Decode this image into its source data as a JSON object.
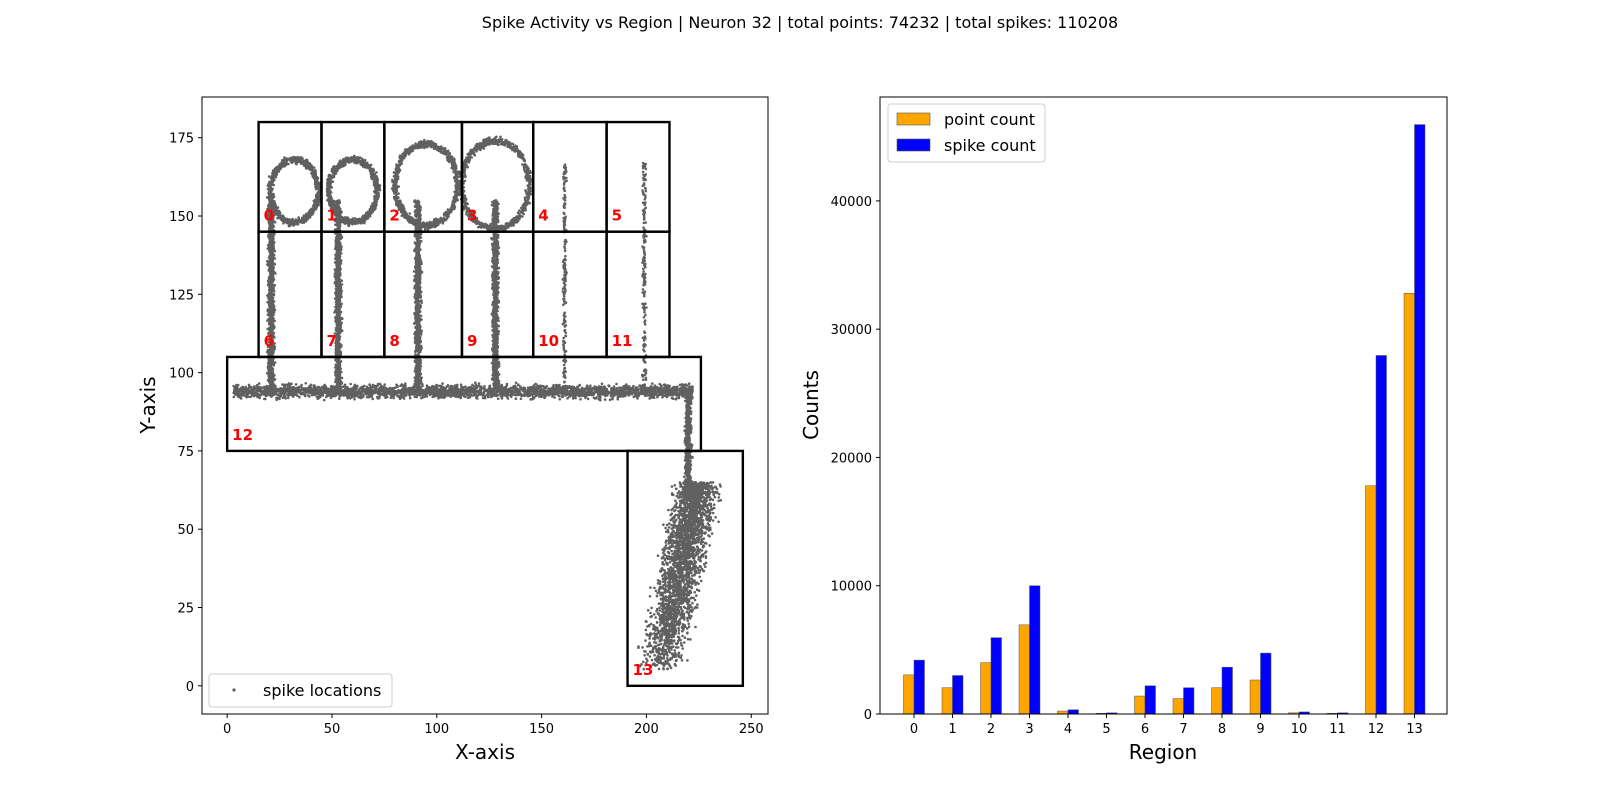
{
  "figure": {
    "title": "Spike Activity vs Region | Neuron 32 | total points: 74232 | total spikes: 110208"
  },
  "chart_data": [
    {
      "type": "scatter",
      "xlabel": "X-axis",
      "ylabel": "Y-axis",
      "xlim": [
        -12,
        258
      ],
      "ylim": [
        -9,
        188
      ],
      "xticks": [
        0,
        50,
        100,
        150,
        200,
        250
      ],
      "yticks": [
        0,
        25,
        50,
        75,
        100,
        125,
        150,
        175
      ],
      "grid": false,
      "legend": {
        "location": "lower-left",
        "entries": [
          "spike locations"
        ]
      },
      "point_color": "#606060",
      "region_label_color": "#ff0000",
      "regions": [
        {
          "id": "0",
          "x": [
            15,
            45
          ],
          "y": [
            145,
            180
          ]
        },
        {
          "id": "1",
          "x": [
            45,
            75
          ],
          "y": [
            145,
            180
          ]
        },
        {
          "id": "2",
          "x": [
            75,
            112
          ],
          "y": [
            145,
            180
          ]
        },
        {
          "id": "3",
          "x": [
            112,
            146
          ],
          "y": [
            145,
            180
          ]
        },
        {
          "id": "4",
          "x": [
            146,
            181
          ],
          "y": [
            145,
            180
          ]
        },
        {
          "id": "5",
          "x": [
            181,
            211
          ],
          "y": [
            145,
            180
          ]
        },
        {
          "id": "6",
          "x": [
            15,
            45
          ],
          "y": [
            105,
            145
          ]
        },
        {
          "id": "7",
          "x": [
            45,
            75
          ],
          "y": [
            105,
            145
          ]
        },
        {
          "id": "8",
          "x": [
            75,
            112
          ],
          "y": [
            105,
            145
          ]
        },
        {
          "id": "9",
          "x": [
            112,
            146
          ],
          "y": [
            105,
            145
          ]
        },
        {
          "id": "10",
          "x": [
            146,
            181
          ],
          "y": [
            105,
            145
          ]
        },
        {
          "id": "11",
          "x": [
            181,
            211
          ],
          "y": [
            105,
            145
          ]
        },
        {
          "id": "12",
          "x": [
            0,
            226
          ],
          "y": [
            75,
            105
          ]
        },
        {
          "id": "13",
          "x": [
            191,
            246
          ],
          "y": [
            0,
            75
          ]
        }
      ],
      "trajectory": {
        "stems_x": [
          21,
          53,
          91,
          128,
          161,
          199
        ],
        "loops": [
          {
            "cx": 32,
            "cy": 158,
            "r": 10
          },
          {
            "cx": 60,
            "cy": 158,
            "r": 10
          },
          {
            "cx": 95,
            "cy": 160,
            "r": 13
          },
          {
            "cx": 128,
            "cy": 160,
            "r": 14
          }
        ],
        "corridor_y": 94,
        "corridor_x": [
          3,
          222
        ]
      }
    },
    {
      "type": "bar",
      "xlabel": "Region",
      "ylabel": "Counts",
      "categories": [
        "0",
        "1",
        "2",
        "3",
        "4",
        "5",
        "6",
        "7",
        "8",
        "9",
        "10",
        "11",
        "12",
        "13"
      ],
      "series": [
        {
          "name": "point count",
          "color": "#ffa500",
          "values": [
            3050,
            2050,
            4000,
            6950,
            230,
            60,
            1400,
            1200,
            2050,
            2650,
            90,
            60,
            17800,
            32800
          ]
        },
        {
          "name": "spike count",
          "color": "#0000ff",
          "values": [
            4200,
            3000,
            5950,
            10000,
            330,
            90,
            2200,
            2050,
            3650,
            4750,
            160,
            90,
            27950,
            45950
          ]
        }
      ],
      "ylim": [
        0,
        48100
      ],
      "yticks": [
        0,
        10000,
        20000,
        30000,
        40000
      ],
      "grid": false,
      "legend": {
        "location": "top-left"
      }
    }
  ]
}
